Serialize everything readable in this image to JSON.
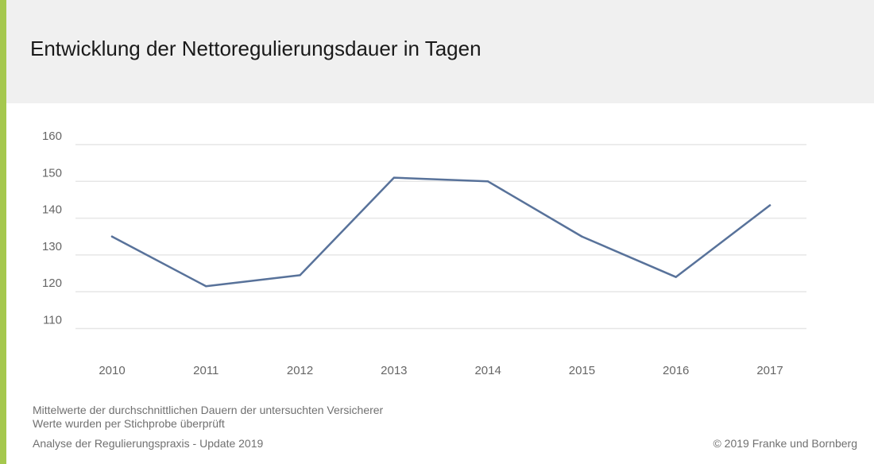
{
  "colors": {
    "accent": "#a5c84e",
    "header_background": "#f0f0f0",
    "line": "#58729a",
    "gridline": "#e6e6e6",
    "tick_text": "#666666"
  },
  "header": {
    "title": "Entwicklung der Nettoregulierungsdauer in Tagen"
  },
  "chart_data": {
    "type": "line",
    "title": "Entwicklung der Nettoregulierungsdauer in Tagen",
    "xlabel": "",
    "ylabel": "",
    "categories": [
      "2010",
      "2011",
      "2012",
      "2013",
      "2014",
      "2015",
      "2016",
      "2017"
    ],
    "series": [
      {
        "values": [
          135,
          121.5,
          124.5,
          151,
          150,
          135,
          124,
          143.5
        ]
      }
    ],
    "yticks": [
      "110",
      "120",
      "130",
      "140",
      "150",
      "160"
    ],
    "ylim": [
      106,
      160
    ],
    "grid": true,
    "legend": "none"
  },
  "footer": {
    "note_line1": "Mittelwerte der durchschnittlichen Dauern der untersuchten Versicherer",
    "note_line2": "Werte wurden per Stichprobe überprüft",
    "source": "Analyse der Regulierungspraxis - Update 2019",
    "copyright": "© 2019 Franke und Bornberg"
  }
}
